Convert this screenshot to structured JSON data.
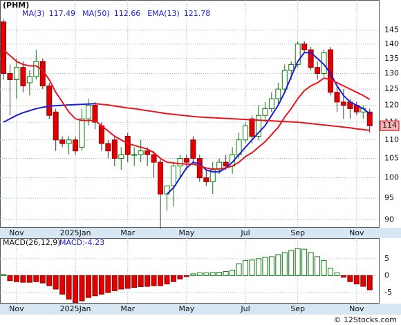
{
  "chart_data": {
    "type": "candlestick",
    "title": "(PHM)",
    "log": true,
    "categories": [
      null,
      null,
      "Nov",
      null,
      null,
      null,
      null,
      null,
      null,
      null,
      null,
      "2025Jan",
      null,
      null,
      null,
      null,
      null,
      null,
      null,
      "Mar",
      null,
      null,
      null,
      null,
      null,
      null,
      null,
      null,
      "May",
      null,
      null,
      null,
      null,
      null,
      null,
      null,
      null,
      "Jul",
      null,
      null,
      null,
      null,
      null,
      null,
      null,
      "Sep",
      null,
      null,
      null,
      null,
      null,
      null,
      null,
      null,
      "Nov",
      null,
      null
    ],
    "open": [
      148,
      130,
      128,
      132,
      127,
      129,
      134,
      126,
      118,
      110,
      109,
      110,
      108,
      116,
      120,
      114,
      109,
      110,
      105,
      111,
      106,
      106,
      107,
      106,
      104,
      96,
      98,
      103,
      105,
      110,
      105,
      100,
      99,
      102,
      104,
      103,
      106,
      110,
      116,
      111,
      117,
      119,
      122,
      125,
      131,
      133,
      140,
      138,
      132,
      130,
      138,
      124,
      121,
      121,
      120,
      118,
      118
    ],
    "high": [
      149,
      133,
      135,
      134,
      131,
      138,
      135,
      127,
      119,
      111,
      111,
      111,
      119,
      122,
      121,
      115,
      110,
      111,
      108,
      112,
      108,
      110,
      108,
      107,
      105,
      98,
      104,
      106,
      106,
      111,
      106,
      102,
      104,
      105,
      106,
      108,
      112,
      115,
      117,
      120,
      121,
      124,
      127,
      133,
      134,
      141,
      141,
      139,
      134,
      138,
      139,
      126,
      125,
      122,
      121,
      120,
      119
    ],
    "low": [
      128,
      117,
      122,
      124,
      123,
      128,
      125,
      116,
      107,
      108,
      106,
      106,
      107,
      114,
      113,
      107,
      105,
      103,
      102,
      104,
      103,
      104,
      103,
      100,
      88,
      92,
      93,
      100,
      102,
      104,
      99,
      98,
      96,
      101,
      102,
      101,
      105,
      109,
      109,
      110,
      115,
      118,
      120,
      124,
      128,
      132,
      137,
      131,
      128,
      129,
      123,
      118,
      116,
      116,
      117,
      116,
      112
    ],
    "close": [
      130,
      128,
      132,
      126,
      129,
      134,
      126,
      117,
      110,
      109,
      110,
      107,
      116,
      120,
      115,
      109,
      107,
      105,
      106,
      106,
      106,
      107,
      106,
      104,
      96,
      98,
      103,
      105,
      104,
      105,
      100,
      99,
      102,
      104,
      103,
      106,
      110,
      114,
      111,
      117,
      119,
      122,
      125,
      131,
      133,
      140,
      138,
      132,
      130,
      137,
      124,
      121,
      120,
      119,
      118,
      119,
      114
    ],
    "ylim": [
      88.2,
      156.4
    ],
    "yticks": [
      90,
      95,
      100,
      105,
      110,
      115,
      120,
      125,
      130,
      135,
      140,
      145
    ],
    "price_tag": 114,
    "series": [
      {
        "name": "MA(3)",
        "last": 117.49,
        "color": "#1a1adc",
        "values": [
          115,
          116,
          117,
          117.8,
          118.4,
          119,
          119.4,
          119.7,
          119.9,
          120,
          120.1,
          120.2,
          120.3,
          120.4,
          120.5,
          null,
          null,
          null,
          null,
          null,
          null,
          null,
          null,
          null,
          null,
          96,
          97.5,
          100,
          102.5,
          104,
          103.5,
          102,
          101.5,
          101.5,
          102.5,
          104,
          106,
          108,
          110,
          112,
          114,
          117,
          120,
          124,
          129,
          134,
          137,
          137,
          135,
          133,
          130,
          126,
          123,
          121,
          120,
          119,
          117.49
        ]
      },
      {
        "name": "MA(50)",
        "last": 112.66,
        "color": "#e8141e",
        "values": [
          null,
          null,
          null,
          null,
          null,
          null,
          null,
          null,
          null,
          null,
          null,
          null,
          null,
          null,
          120.5,
          120.3,
          120.1,
          119.8,
          119.5,
          119.2,
          119,
          118.7,
          118.4,
          118.1,
          117.8,
          117.5,
          117.3,
          117.1,
          116.9,
          116.7,
          116.5,
          116.4,
          116.3,
          116.2,
          116.1,
          116,
          115.9,
          115.8,
          115.7,
          115.6,
          115.5,
          115.4,
          115.3,
          115.2,
          115.1,
          115,
          114.8,
          114.6,
          114.4,
          114.2,
          114,
          113.8,
          113.6,
          113.4,
          113.1,
          112.9,
          112.66
        ]
      },
      {
        "name": "EMA(13)",
        "last": 121.78,
        "color": "#e8141e",
        "values": [
          138,
          136,
          134,
          133,
          132.5,
          132.5,
          131,
          128,
          124,
          121,
          118,
          116,
          115.5,
          115.5,
          115.5,
          114,
          112.5,
          111,
          110,
          109,
          108.5,
          108,
          107.5,
          106.5,
          105,
          104,
          103.8,
          103.6,
          103.5,
          103.5,
          103,
          102.5,
          102.2,
          102.3,
          102.5,
          103,
          104,
          105.5,
          106.5,
          108,
          109.5,
          111.5,
          113.5,
          116.5,
          119,
          122,
          124.5,
          126,
          127,
          128.5,
          128,
          127,
          126,
          125,
          124,
          123,
          121.78
        ]
      }
    ],
    "macd": {
      "title": "MACD(26,12,9)",
      "label": "MACD:-4.23",
      "ylim": [
        -8.3,
        11.1
      ],
      "yticks": [
        -5,
        0,
        5
      ],
      "values": [
        0.3,
        -1.5,
        -1.8,
        -2,
        -2,
        -1.8,
        -2.2,
        -3,
        -4,
        -5.5,
        -7,
        -8,
        -7.5,
        -6.5,
        -6,
        -5.5,
        -5,
        -4.5,
        -4,
        -3.8,
        -3.5,
        -3.3,
        -3.2,
        -3,
        -3,
        -2.5,
        -1.8,
        -1,
        -0.3,
        0.5,
        0.8,
        0.8,
        0.9,
        1,
        1.2,
        1.6,
        3.5,
        4.5,
        4.6,
        5,
        5.4,
        5.6,
        6.2,
        6.8,
        7.4,
        8,
        7.8,
        6.8,
        5.6,
        4.5,
        2.2,
        0.8,
        -0.5,
        -1.8,
        -2.5,
        -3.2,
        -4.23
      ]
    },
    "watermark": "© 12Stocks.com"
  }
}
